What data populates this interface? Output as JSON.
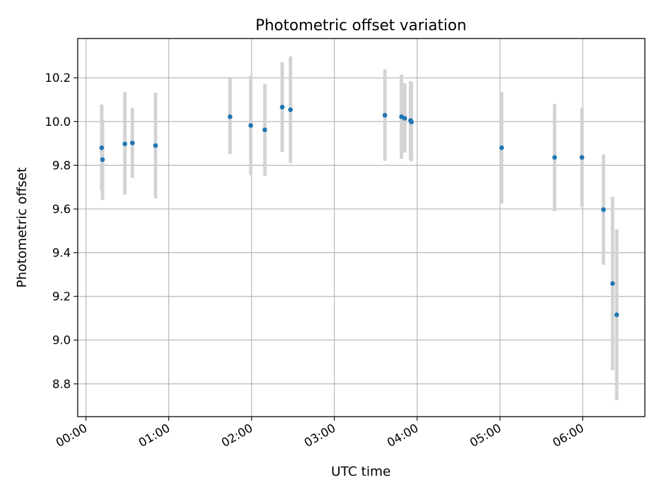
{
  "chart_data": {
    "type": "scatter",
    "title": "Photometric offset variation",
    "xlabel": "UTC time",
    "ylabel": "Photometric offset",
    "x_unit": "hours (UTC)",
    "xlim": [
      -0.1,
      6.75
    ],
    "ylim": [
      8.65,
      10.38
    ],
    "grid": true,
    "x_ticks": [
      {
        "value": 0,
        "label": "00:00"
      },
      {
        "value": 1,
        "label": "01:00"
      },
      {
        "value": 2,
        "label": "02:00"
      },
      {
        "value": 3,
        "label": "03:00"
      },
      {
        "value": 4,
        "label": "04:00"
      },
      {
        "value": 5,
        "label": "05:00"
      },
      {
        "value": 6,
        "label": "06:00"
      }
    ],
    "y_ticks": [
      {
        "value": 8.8,
        "label": "8.8"
      },
      {
        "value": 9.0,
        "label": "9.0"
      },
      {
        "value": 9.2,
        "label": "9.2"
      },
      {
        "value": 9.4,
        "label": "9.4"
      },
      {
        "value": 9.6,
        "label": "9.6"
      },
      {
        "value": 9.8,
        "label": "9.8"
      },
      {
        "value": 10.0,
        "label": "10.0"
      },
      {
        "value": 10.2,
        "label": "10.2"
      }
    ],
    "point_color": "#1f77b4",
    "errorbar_color": "#d3d3d3",
    "points": [
      {
        "x": 0.19,
        "y": 9.88,
        "low": 9.685,
        "high": 10.078
      },
      {
        "x": 0.2,
        "y": 9.826,
        "low": 9.64,
        "high": 10.01
      },
      {
        "x": 0.47,
        "y": 9.898,
        "low": 9.665,
        "high": 10.135
      },
      {
        "x": 0.56,
        "y": 9.902,
        "low": 9.742,
        "high": 10.063
      },
      {
        "x": 0.84,
        "y": 9.89,
        "low": 9.648,
        "high": 10.132
      },
      {
        "x": 1.74,
        "y": 10.022,
        "low": 9.851,
        "high": 10.198
      },
      {
        "x": 1.99,
        "y": 9.982,
        "low": 9.755,
        "high": 10.21
      },
      {
        "x": 2.16,
        "y": 9.962,
        "low": 9.752,
        "high": 10.172
      },
      {
        "x": 2.37,
        "y": 10.066,
        "low": 9.861,
        "high": 10.272
      },
      {
        "x": 2.47,
        "y": 10.054,
        "low": 9.81,
        "high": 10.298
      },
      {
        "x": 3.61,
        "y": 10.029,
        "low": 9.82,
        "high": 10.239
      },
      {
        "x": 3.81,
        "y": 10.022,
        "low": 9.829,
        "high": 10.215
      },
      {
        "x": 3.85,
        "y": 10.015,
        "low": 9.859,
        "high": 10.175
      },
      {
        "x": 3.92,
        "y": 10.005,
        "low": 9.825,
        "high": 10.185
      },
      {
        "x": 3.93,
        "y": 9.998,
        "low": 9.818,
        "high": 10.18
      },
      {
        "x": 5.02,
        "y": 9.88,
        "low": 9.625,
        "high": 10.135
      },
      {
        "x": 5.66,
        "y": 9.836,
        "low": 9.59,
        "high": 10.08
      },
      {
        "x": 5.99,
        "y": 9.836,
        "low": 9.608,
        "high": 10.063
      },
      {
        "x": 6.25,
        "y": 9.597,
        "low": 9.344,
        "high": 9.85
      },
      {
        "x": 6.36,
        "y": 9.259,
        "low": 8.862,
        "high": 9.655
      },
      {
        "x": 6.41,
        "y": 9.116,
        "low": 8.725,
        "high": 9.507
      }
    ]
  }
}
